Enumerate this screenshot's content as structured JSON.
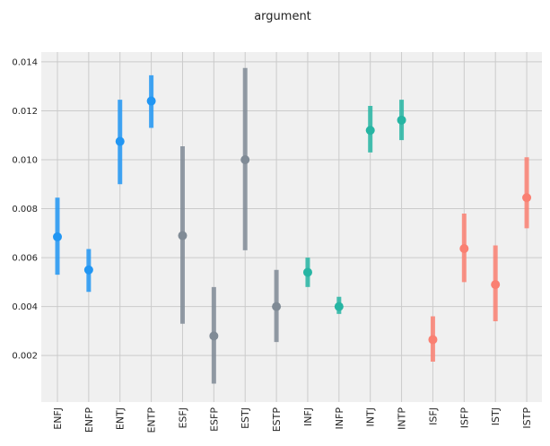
{
  "chart_data": {
    "type": "pointrange",
    "title": "argument",
    "xlabel": "",
    "ylabel": "",
    "ylim": [
      0.0001,
      0.0144
    ],
    "yticks": [
      0.002,
      0.004,
      0.006,
      0.008,
      0.01,
      0.012,
      0.014
    ],
    "ytick_labels": [
      "0.002",
      "0.004",
      "0.006",
      "0.008",
      "0.010",
      "0.012",
      "0.014"
    ],
    "grid": true,
    "legend": "none",
    "categories": [
      "ENFJ",
      "ENFP",
      "ENTJ",
      "ENTP",
      "ESFJ",
      "ESFP",
      "ESTJ",
      "ESTP",
      "INFJ",
      "INFP",
      "INTJ",
      "INTP",
      "ISFJ",
      "ISFP",
      "ISTJ",
      "ISTP"
    ],
    "values": [
      0.00685,
      0.0055,
      0.01075,
      0.0124,
      0.0069,
      0.0028,
      0.01,
      0.004,
      0.0054,
      0.004,
      0.0112,
      0.01162,
      0.00265,
      0.00637,
      0.0049,
      0.00845
    ],
    "lower": [
      0.0053,
      0.0046,
      0.009,
      0.0113,
      0.0033,
      0.00085,
      0.0063,
      0.00255,
      0.0048,
      0.0037,
      0.0103,
      0.0108,
      0.00175,
      0.005,
      0.0034,
      0.0072
    ],
    "upper": [
      0.00845,
      0.00635,
      0.01245,
      0.01345,
      0.01055,
      0.0048,
      0.01375,
      0.0055,
      0.006,
      0.0044,
      0.0122,
      0.01245,
      0.0036,
      0.0078,
      0.0065,
      0.0101
    ],
    "colors": [
      "#2196f3",
      "#2196f3",
      "#2196f3",
      "#2196f3",
      "#808b96",
      "#808b96",
      "#808b96",
      "#808b96",
      "#26b5a3",
      "#26b5a3",
      "#26b5a3",
      "#26b5a3",
      "#fa8072",
      "#fa8072",
      "#fa8072",
      "#fa8072"
    ]
  }
}
